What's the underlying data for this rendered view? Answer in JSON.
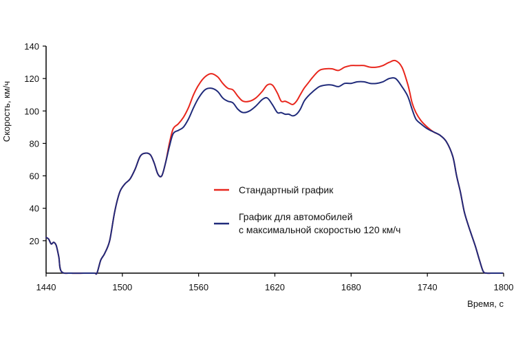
{
  "chart_data": {
    "type": "line",
    "title": "",
    "xlabel": "Время, с",
    "ylabel": "Скорость, км/ч",
    "xlim": [
      1440,
      1800
    ],
    "ylim": [
      0,
      140
    ],
    "xticks": [
      1440,
      1500,
      1560,
      1620,
      1680,
      1740,
      1800
    ],
    "yticks": [
      20,
      40,
      60,
      80,
      100,
      120,
      140
    ],
    "grid": false,
    "legend_position": "center",
    "series": [
      {
        "name": "Стандартный график",
        "color": "#e8261c",
        "x": [
          1440,
          1442,
          1444,
          1446,
          1448,
          1450,
          1452,
          1460,
          1470,
          1478,
          1480,
          1483,
          1486,
          1490,
          1494,
          1498,
          1502,
          1506,
          1510,
          1514,
          1518,
          1522,
          1525,
          1528,
          1531,
          1534,
          1537,
          1540,
          1544,
          1548,
          1552,
          1556,
          1560,
          1565,
          1570,
          1575,
          1579,
          1583,
          1587,
          1591,
          1595,
          1600,
          1605,
          1610,
          1614,
          1618,
          1622,
          1625,
          1628,
          1631,
          1634,
          1637,
          1640,
          1643,
          1646,
          1650,
          1655,
          1660,
          1665,
          1670,
          1675,
          1680,
          1685,
          1690,
          1695,
          1700,
          1705,
          1710,
          1715,
          1720,
          1724,
          1726,
          1728,
          1731,
          1735,
          1740,
          1745,
          1750,
          1755,
          1760,
          1763,
          1766,
          1769,
          1772,
          1775,
          1778,
          1781,
          1784,
          1787,
          1790,
          1793,
          1796,
          1799
        ],
        "values": [
          22,
          21,
          18,
          19,
          17,
          10,
          1,
          0,
          0,
          0,
          0,
          8,
          12,
          20,
          38,
          50,
          55,
          58,
          64,
          72,
          74,
          73,
          68,
          61,
          60,
          68,
          80,
          89,
          92,
          96,
          102,
          110,
          116,
          121,
          123,
          121,
          117,
          114,
          113,
          109,
          106,
          106,
          108,
          112,
          116,
          116,
          111,
          106,
          106,
          105,
          104,
          106,
          110,
          114,
          117,
          121,
          125,
          126,
          126,
          125,
          127,
          128,
          128,
          128,
          127,
          127,
          128,
          130,
          131,
          127,
          118,
          112,
          105,
          99,
          94,
          90,
          87,
          85,
          81,
          72,
          60,
          50,
          38,
          30,
          23,
          16,
          8,
          1,
          0,
          0,
          0,
          0,
          0
        ]
      },
      {
        "name": "График для автомобилей с максимальной скоростью 120 км/ч",
        "color": "#1f2a7a",
        "x": [
          1440,
          1442,
          1444,
          1446,
          1448,
          1450,
          1452,
          1460,
          1470,
          1478,
          1480,
          1483,
          1486,
          1490,
          1494,
          1498,
          1502,
          1506,
          1510,
          1514,
          1518,
          1522,
          1525,
          1528,
          1531,
          1534,
          1537,
          1540,
          1544,
          1548,
          1552,
          1556,
          1560,
          1565,
          1570,
          1575,
          1579,
          1583,
          1587,
          1591,
          1595,
          1600,
          1605,
          1610,
          1614,
          1618,
          1622,
          1625,
          1628,
          1631,
          1634,
          1637,
          1640,
          1643,
          1646,
          1650,
          1655,
          1660,
          1665,
          1670,
          1675,
          1680,
          1685,
          1690,
          1695,
          1700,
          1705,
          1710,
          1715,
          1720,
          1724,
          1726,
          1728,
          1731,
          1735,
          1740,
          1745,
          1750,
          1755,
          1760,
          1763,
          1766,
          1769,
          1772,
          1775,
          1778,
          1781,
          1784,
          1787,
          1790,
          1793,
          1796,
          1799
        ],
        "values": [
          22,
          21,
          18,
          19,
          17,
          10,
          1,
          0,
          0,
          0,
          0,
          8,
          12,
          20,
          38,
          50,
          55,
          58,
          64,
          72,
          74,
          73,
          68,
          61,
          60,
          68,
          78,
          86,
          88,
          90,
          95,
          102,
          108,
          113,
          114,
          112,
          108,
          106,
          105,
          101,
          99,
          100,
          103,
          107,
          108,
          104,
          99,
          99,
          98,
          98,
          97,
          98,
          101,
          106,
          109,
          112,
          115,
          116,
          116,
          115,
          117,
          117,
          118,
          118,
          117,
          117,
          118,
          120,
          120,
          115,
          110,
          106,
          101,
          95,
          92,
          89,
          87,
          85,
          81,
          72,
          60,
          50,
          38,
          30,
          23,
          16,
          8,
          1,
          0,
          0,
          0,
          0,
          0
        ]
      }
    ]
  }
}
